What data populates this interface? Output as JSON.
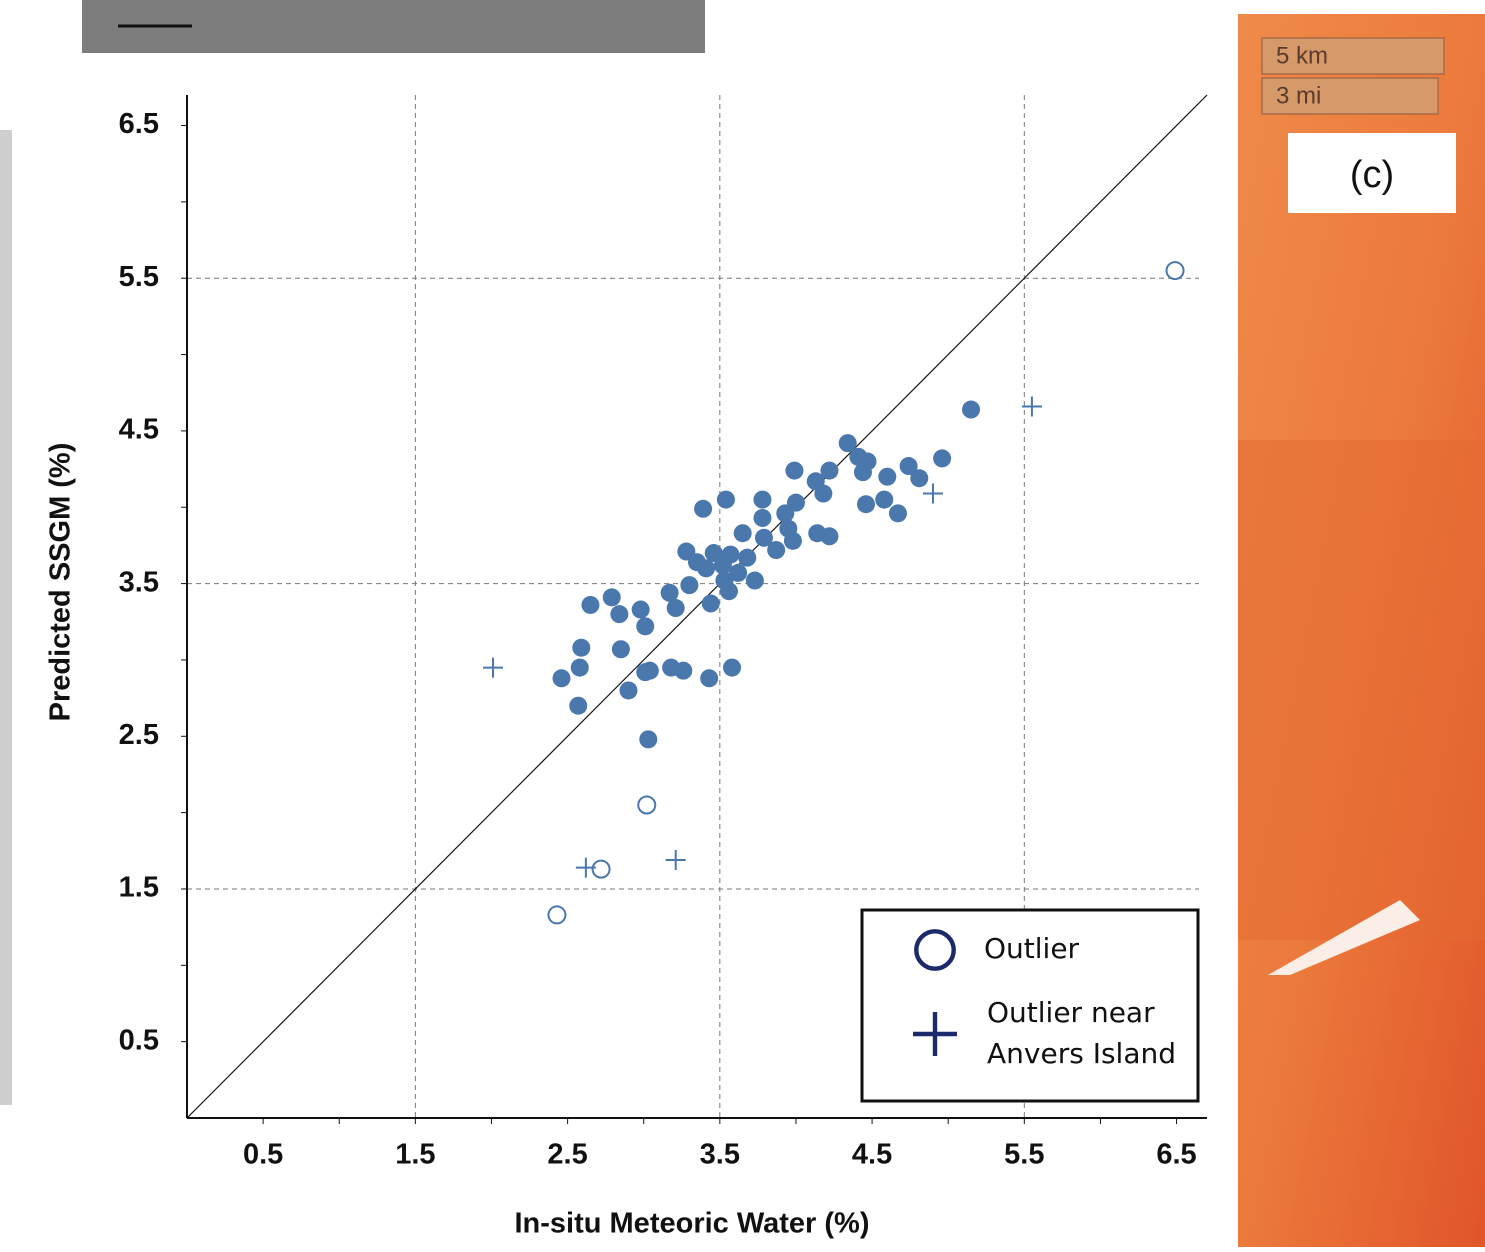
{
  "chart_data": {
    "type": "scatter",
    "xlabel": "In-situ Meteoric Water (%)",
    "ylabel": "Predicted SSGM (%)",
    "xlim": [
      0,
      6.7
    ],
    "ylim": [
      0,
      6.7
    ],
    "xticks": [
      0.5,
      1.5,
      2.5,
      3.5,
      4.5,
      5.5,
      6.5
    ],
    "yticks": [
      0.5,
      1.5,
      2.5,
      3.5,
      4.5,
      5.5,
      6.5
    ],
    "minor_ticks": [
      1,
      2,
      3,
      4,
      5,
      6
    ],
    "grid_lines": [
      1.5,
      3.5,
      5.5
    ],
    "identity_line": true,
    "legend_position": "lower right",
    "legend_color": "#1b2a6b",
    "series": [
      {
        "marker": "filled",
        "color": "#4a77ac",
        "x": [
          5.15,
          4.34,
          4.96,
          3.99,
          4.22,
          4.47,
          4.41,
          4.44,
          4.74,
          4.81,
          4.6,
          4.13,
          3.78,
          3.54,
          3.39,
          4.18,
          4.0,
          4.46,
          4.58,
          4.67,
          3.93,
          3.78,
          3.65,
          3.95,
          3.79,
          3.87,
          4.14,
          4.22,
          3.98,
          3.28,
          3.46,
          3.57,
          3.68,
          3.35,
          3.41,
          3.52,
          3.62,
          3.3,
          3.17,
          3.53,
          3.73,
          3.56,
          3.44,
          3.21,
          2.79,
          2.65,
          2.98,
          2.84,
          3.01,
          2.59,
          2.85,
          2.58,
          3.18,
          3.26,
          3.04,
          3.01,
          3.58,
          2.46,
          3.43,
          2.9,
          2.57,
          3.03
        ],
        "y": [
          4.64,
          4.42,
          4.32,
          4.24,
          4.24,
          4.3,
          4.33,
          4.23,
          4.27,
          4.19,
          4.2,
          4.17,
          4.05,
          4.05,
          3.99,
          4.09,
          4.03,
          4.02,
          4.05,
          3.96,
          3.96,
          3.93,
          3.83,
          3.86,
          3.8,
          3.72,
          3.83,
          3.81,
          3.78,
          3.71,
          3.7,
          3.69,
          3.67,
          3.64,
          3.6,
          3.62,
          3.57,
          3.49,
          3.44,
          3.52,
          3.52,
          3.45,
          3.37,
          3.34,
          3.41,
          3.36,
          3.33,
          3.3,
          3.22,
          3.08,
          3.07,
          2.95,
          2.95,
          2.93,
          2.93,
          2.92,
          2.95,
          2.88,
          2.88,
          2.8,
          2.7,
          2.48
        ]
      },
      {
        "name": "Outlier",
        "marker": "open",
        "color": "#4a77ac",
        "x": [
          6.49,
          3.02,
          2.72,
          2.43
        ],
        "y": [
          5.55,
          2.05,
          1.63,
          1.33
        ]
      },
      {
        "name": "Outlier near Anvers Island",
        "marker": "plus",
        "color": "#4a77ac",
        "x": [
          5.55,
          4.9,
          2.01,
          2.62,
          3.21
        ],
        "y": [
          4.66,
          4.09,
          2.95,
          1.64,
          1.69
        ]
      }
    ]
  },
  "inset_labels": {
    "scale_km": "5 km",
    "scale_mi": "3 mi",
    "panel": "(c)"
  }
}
